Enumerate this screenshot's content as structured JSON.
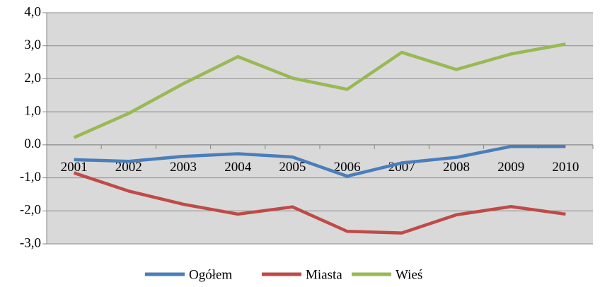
{
  "chart_data": {
    "type": "line",
    "categories": [
      "2001",
      "2002",
      "2003",
      "2004",
      "2005",
      "2006",
      "2007",
      "2008",
      "2009",
      "2010"
    ],
    "series": [
      {
        "name": "Ogółem",
        "color": "#4a7ebb",
        "values": [
          -0.45,
          -0.5,
          -0.35,
          -0.27,
          -0.37,
          -0.95,
          -0.55,
          -0.38,
          -0.05,
          -0.05
        ]
      },
      {
        "name": "Miasta",
        "color": "#be4b48",
        "values": [
          -0.85,
          -1.4,
          -1.8,
          -2.1,
          -1.88,
          -2.62,
          -2.67,
          -2.12,
          -1.87,
          -2.1
        ]
      },
      {
        "name": "Wieś",
        "color": "#98b954",
        "values": [
          0.22,
          0.95,
          1.85,
          2.67,
          2.02,
          1.68,
          2.8,
          2.28,
          2.75,
          3.05
        ]
      }
    ],
    "ylim": [
      -3,
      4
    ],
    "yticks": [
      {
        "value": -3,
        "label": "-3,0"
      },
      {
        "value": -2,
        "label": "-2,0"
      },
      {
        "value": -1,
        "label": "-1,0"
      },
      {
        "value": 0,
        "label": "0.0"
      },
      {
        "value": 1,
        "label": "1,0"
      },
      {
        "value": 2,
        "label": "2,0"
      },
      {
        "value": 3,
        "label": "3,0"
      },
      {
        "value": 4,
        "label": "4,0"
      }
    ],
    "grid": true,
    "legend": "bottom"
  }
}
